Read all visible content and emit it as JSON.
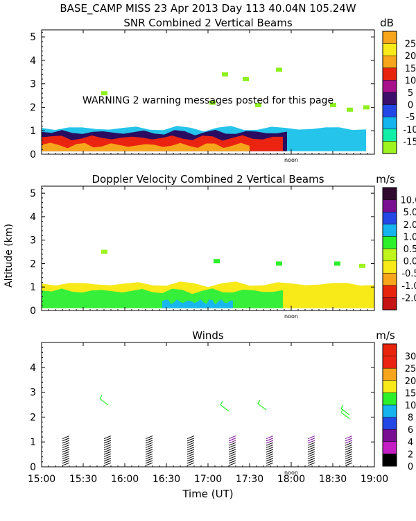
{
  "header": {
    "line1": "BASE_CAMP MISS  23 Apr 2013 Day 113 40.04N 105.24W"
  },
  "x_axis": {
    "label": "Time (UT)",
    "range": [
      15.0,
      19.0
    ],
    "ticks": [
      {
        "v": 15.0,
        "label": "15:00"
      },
      {
        "v": 15.5,
        "label": "15:30"
      },
      {
        "v": 16.0,
        "label": "16:00"
      },
      {
        "v": 16.5,
        "label": "16:30"
      },
      {
        "v": 17.0,
        "label": "17:00"
      },
      {
        "v": 17.5,
        "label": "17:30"
      },
      {
        "v": 18.0,
        "label": "18:00"
      },
      {
        "v": 18.5,
        "label": "18:30"
      },
      {
        "v": 19.0,
        "label": "19:00"
      }
    ],
    "noon_label": "noon",
    "noon_at": 18.0
  },
  "y_label": "Altitude (km)",
  "chart_data": [
    {
      "type": "heatmap",
      "title": "SNR Combined 2 Vertical Beams",
      "units": "dB",
      "ylim": [
        0,
        5.3
      ],
      "yticks": [
        "0",
        "1",
        "2",
        "3",
        "4",
        "5"
      ],
      "warning": "WARNING  2 warning messages posted for this page",
      "colorbar": {
        "labels": [
          "25",
          "20",
          "15",
          "10",
          "5",
          "0",
          "-5",
          "-10",
          "-15"
        ],
        "colors": [
          "#f7a51a",
          "#f7ea18",
          "#f7a51a",
          "#e8250c",
          "#a8108c",
          "#3c0f6a",
          "#2448e6",
          "#14b4ee",
          "#12f0a8",
          "#9ef41e"
        ]
      },
      "layers": [
        {
          "name": "cyan-band",
          "color": "#25c4ea",
          "x": [
            15.0,
            18.9
          ],
          "y": [
            0.13,
            1.12
          ]
        },
        {
          "name": "purple-layer",
          "color": "#2a0c60",
          "x": [
            15.0,
            17.95
          ],
          "y": [
            0.13,
            0.95
          ]
        },
        {
          "name": "red-layer",
          "color": "#ea2410",
          "x": [
            15.0,
            17.9
          ],
          "y": [
            0.13,
            0.72
          ]
        },
        {
          "name": "orange-layer",
          "color": "#f7a51a",
          "x": [
            15.0,
            17.5
          ],
          "y": [
            0.13,
            0.4
          ]
        }
      ],
      "sparse_echoes": [
        {
          "x": 17.2,
          "y": 3.4
        },
        {
          "x": 17.45,
          "y": 3.2
        },
        {
          "x": 17.85,
          "y": 3.6
        },
        {
          "x": 17.05,
          "y": 2.2
        },
        {
          "x": 17.6,
          "y": 2.1
        },
        {
          "x": 18.5,
          "y": 2.1
        },
        {
          "x": 18.9,
          "y": 2.0
        },
        {
          "x": 15.75,
          "y": 2.6
        },
        {
          "x": 18.7,
          "y": 1.9
        }
      ]
    },
    {
      "type": "heatmap",
      "title": "Doppler Velocity Combined 2 Vertical Beams",
      "units": "m/s",
      "ylim": [
        0,
        5.3
      ],
      "yticks": [
        "0",
        "1",
        "2",
        "3",
        "4",
        "5"
      ],
      "colorbar": {
        "labels": [
          "10.0",
          "5.0",
          "2.0",
          "1.0",
          "0.5",
          "0.0",
          "-0.5",
          "-1.0",
          "-2.0"
        ],
        "colors": [
          "#300a2e",
          "#7a0e92",
          "#2448e6",
          "#16b4ee",
          "#2cf02a",
          "#bff51a",
          "#f7ea18",
          "#f7a51a",
          "#e8250c",
          "#c51212"
        ]
      },
      "layers": [
        {
          "name": "yellow-band",
          "color": "#f7ea18",
          "x": [
            15.0,
            19.0
          ],
          "y": [
            0.1,
            1.15
          ]
        },
        {
          "name": "green-band",
          "color": "#36ef3a",
          "x": [
            15.0,
            17.9
          ],
          "y": [
            0.1,
            0.85
          ]
        },
        {
          "name": "cyan-patch",
          "color": "#18b8ee",
          "x": [
            16.45,
            17.3
          ],
          "y": [
            0.1,
            0.4
          ]
        }
      ],
      "sparse_echoes": [
        {
          "x": 17.1,
          "y": 2.1
        },
        {
          "x": 15.75,
          "y": 2.5
        },
        {
          "x": 18.55,
          "y": 2.0
        },
        {
          "x": 18.85,
          "y": 1.9
        },
        {
          "x": 17.85,
          "y": 2.0
        }
      ]
    },
    {
      "type": "scatter",
      "title": "Winds",
      "units": "m/s",
      "ylim": [
        0,
        5.0
      ],
      "yticks": [
        "0",
        "1",
        "2",
        "3",
        "4"
      ],
      "colorbar": {
        "labels": [
          "30",
          "25",
          "20",
          "15",
          "10",
          "8",
          "6",
          "4",
          "2",
          "0"
        ],
        "colors": [
          "#e8250c",
          "#ea2410",
          "#f7a51a",
          "#f7ea18",
          "#2cf02a",
          "#16b4ee",
          "#2448e6",
          "#7a0e92",
          "#c51ec5",
          "#000000"
        ]
      },
      "profiles_time": [
        15.25,
        15.75,
        16.25,
        16.75,
        17.25,
        17.7,
        18.2,
        18.65
      ],
      "high_barbs": [
        {
          "x": 15.75,
          "y": 2.6
        },
        {
          "x": 17.2,
          "y": 2.35
        },
        {
          "x": 17.65,
          "y": 2.4
        },
        {
          "x": 18.65,
          "y": 2.2
        },
        {
          "x": 18.65,
          "y": 2.05
        }
      ]
    }
  ]
}
